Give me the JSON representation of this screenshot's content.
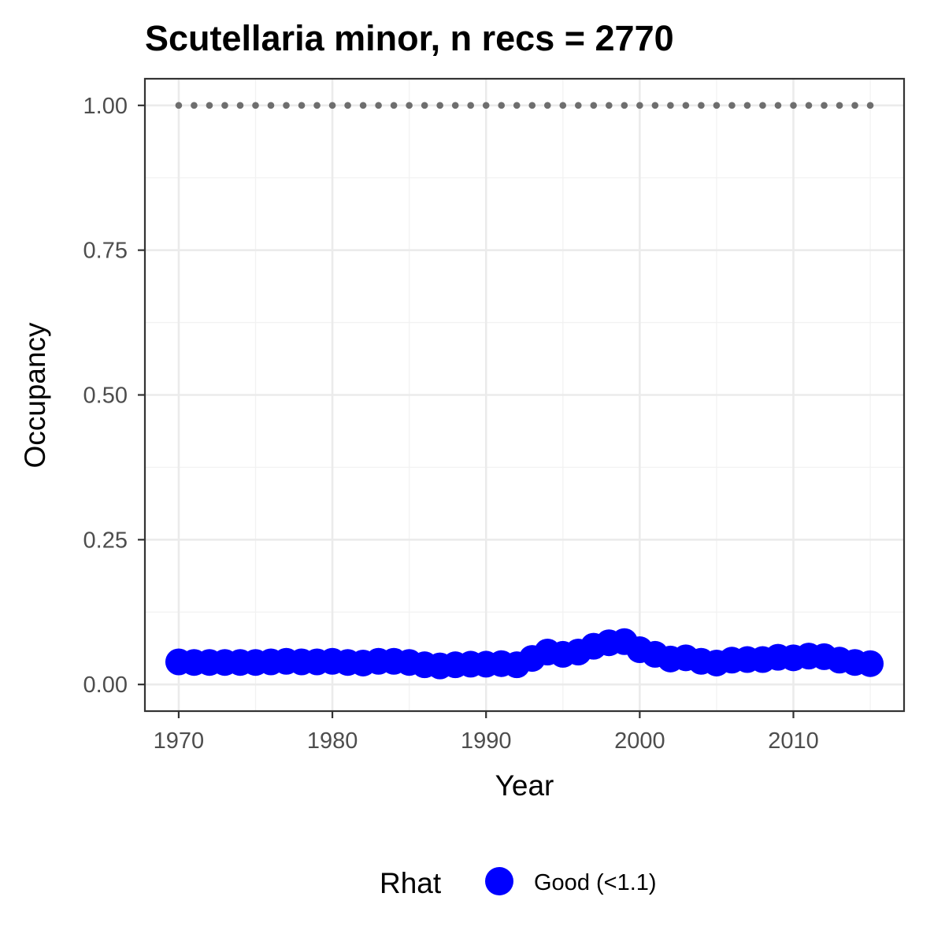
{
  "chart_data": {
    "type": "scatter",
    "title": "Scutellaria minor, n recs = 2770",
    "xlabel": "Year",
    "ylabel": "Occupancy",
    "xlim": [
      1967.8,
      2017.2
    ],
    "ylim": [
      -0.046,
      1.046
    ],
    "x_ticks": [
      1970,
      1980,
      1990,
      2000,
      2010
    ],
    "x_tick_labels": [
      "1970",
      "1980",
      "1990",
      "2000",
      "2010"
    ],
    "y_ticks": [
      0,
      0.25,
      0.5,
      0.75,
      1
    ],
    "y_tick_labels": [
      "0.00",
      "0.25",
      "0.50",
      "0.75",
      "1.00"
    ],
    "grid": true,
    "legend": {
      "title": "Rhat",
      "position": "bottom",
      "entries": [
        {
          "label": "Good (<1.1)",
          "color": "#0000ff"
        }
      ]
    },
    "series": [
      {
        "name": "Good (<1.1)",
        "color": "#0000ff",
        "x": [
          1970,
          1971,
          1972,
          1973,
          1974,
          1975,
          1976,
          1977,
          1978,
          1979,
          1980,
          1981,
          1982,
          1983,
          1984,
          1985,
          1986,
          1987,
          1988,
          1989,
          1990,
          1991,
          1992,
          1993,
          1994,
          1995,
          1996,
          1997,
          1998,
          1999,
          2000,
          2001,
          2002,
          2003,
          2004,
          2005,
          2006,
          2007,
          2008,
          2009,
          2010,
          2011,
          2012,
          2013,
          2014,
          2015
        ],
        "y": [
          0.039,
          0.038,
          0.038,
          0.038,
          0.038,
          0.038,
          0.039,
          0.04,
          0.039,
          0.039,
          0.04,
          0.038,
          0.037,
          0.04,
          0.04,
          0.038,
          0.034,
          0.032,
          0.034,
          0.035,
          0.035,
          0.036,
          0.034,
          0.045,
          0.056,
          0.052,
          0.056,
          0.066,
          0.072,
          0.074,
          0.06,
          0.052,
          0.044,
          0.046,
          0.04,
          0.037,
          0.042,
          0.043,
          0.043,
          0.047,
          0.046,
          0.049,
          0.048,
          0.042,
          0.038,
          0.036
        ]
      }
    ],
    "reference_line": {
      "color": "#6e6e6e",
      "x": [
        1970,
        1971,
        1972,
        1973,
        1974,
        1975,
        1976,
        1977,
        1978,
        1979,
        1980,
        1981,
        1982,
        1983,
        1984,
        1985,
        1986,
        1987,
        1988,
        1989,
        1990,
        1991,
        1992,
        1993,
        1994,
        1995,
        1996,
        1997,
        1998,
        1999,
        2000,
        2001,
        2002,
        2003,
        2004,
        2005,
        2006,
        2007,
        2008,
        2009,
        2010,
        2011,
        2012,
        2013,
        2014,
        2015
      ],
      "y": 1.0
    }
  }
}
